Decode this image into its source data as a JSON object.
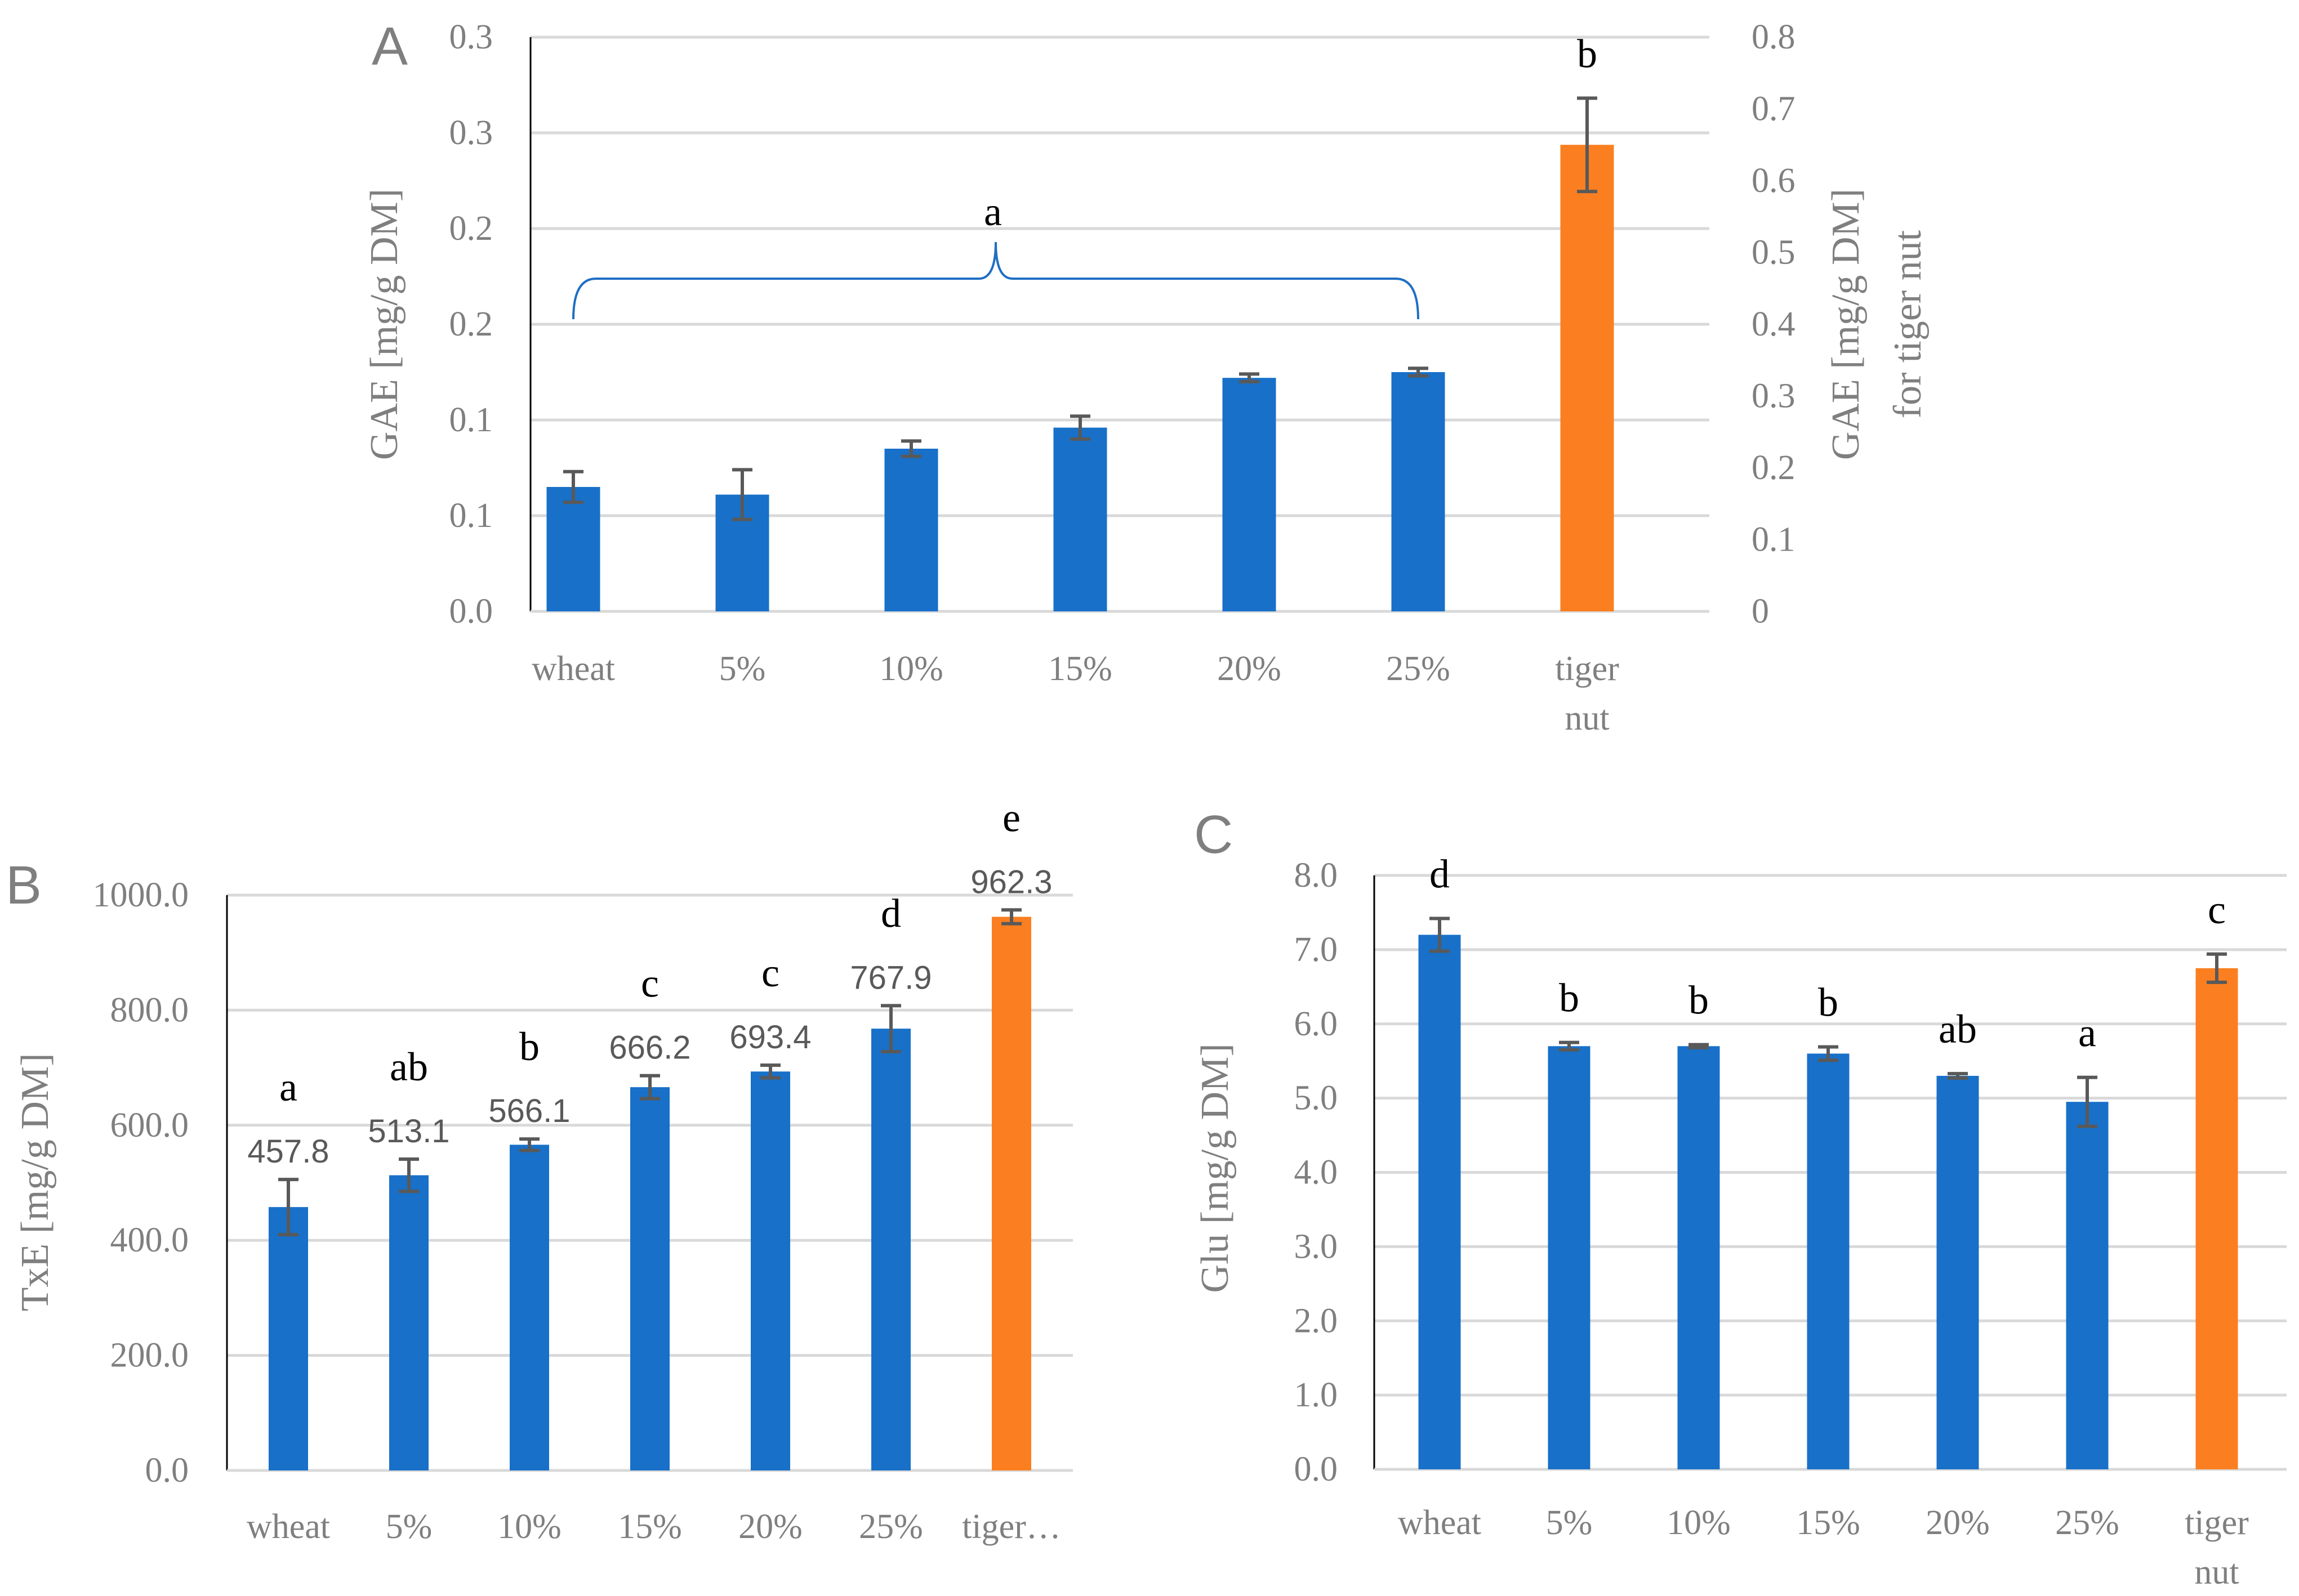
{
  "colors": {
    "bar": "#1870c8",
    "highlight": "#fb7f20",
    "grid": "#d9d9d9"
  },
  "chart_data": [
    {
      "id": "A",
      "type": "bar",
      "panel_label": "A",
      "ylabel": "GAE [mg/g DM]",
      "y2label_line1": "GAE [mg/g DM]",
      "y2label_line2": "for tiger nut",
      "y_ticks": [
        "0.0",
        "0.1",
        "0.1",
        "0.2",
        "0.2",
        "0.3",
        "0.3"
      ],
      "y2_ticks": [
        "0",
        "0.1",
        "0.2",
        "0.3",
        "0.4",
        "0.5",
        "0.6",
        "0.7",
        "0.8"
      ],
      "ylim": [
        0,
        0.3
      ],
      "y2lim": [
        0,
        0.8
      ],
      "grid": true,
      "categories": [
        [
          "wheat"
        ],
        [
          "5%"
        ],
        [
          "10%"
        ],
        [
          "15%"
        ],
        [
          "20%"
        ],
        [
          "25%"
        ],
        [
          "tiger",
          "nut"
        ]
      ],
      "values": [
        0.065,
        0.061,
        0.085,
        0.096,
        0.122,
        0.125,
        0.65
      ],
      "errors": [
        0.008,
        0.013,
        0.004,
        0.006,
        0.002,
        0.002,
        0.065
      ],
      "axis": [
        "left",
        "left",
        "left",
        "left",
        "left",
        "left",
        "right"
      ],
      "highlight": [
        false,
        false,
        false,
        false,
        false,
        false,
        true
      ],
      "significance": [
        "",
        "",
        "",
        "",
        "",
        "",
        "b"
      ],
      "brace": {
        "letter": "a",
        "from": 0,
        "to": 5
      }
    },
    {
      "id": "B",
      "type": "bar",
      "panel_label": "B",
      "ylabel": "TxE [mg/g DM]",
      "y_ticks": [
        "0.0",
        "200.0",
        "400.0",
        "600.0",
        "800.0",
        "1000.0"
      ],
      "ylim": [
        0,
        1000
      ],
      "grid": true,
      "categories": [
        [
          "wheat"
        ],
        [
          "5%"
        ],
        [
          "10%"
        ],
        [
          "15%"
        ],
        [
          "20%"
        ],
        [
          "25%"
        ],
        [
          "tiger…"
        ]
      ],
      "values": [
        457.8,
        513.1,
        566.1,
        666.2,
        693.4,
        767.9,
        962.3
      ],
      "value_labels": [
        "457.8",
        "513.1",
        "566.1",
        "666.2",
        "693.4",
        "767.9",
        "962.3"
      ],
      "errors": [
        48,
        28,
        10,
        20,
        11,
        40,
        12
      ],
      "highlight": [
        false,
        false,
        false,
        false,
        false,
        false,
        true
      ],
      "significance": [
        "a",
        "ab",
        "b",
        "c",
        "c",
        "d",
        "e"
      ]
    },
    {
      "id": "C",
      "type": "bar",
      "panel_label": "C",
      "ylabel": "Glu [mg/g DM]",
      "y_ticks": [
        "0.0",
        "1.0",
        "2.0",
        "3.0",
        "4.0",
        "5.0",
        "6.0",
        "7.0",
        "8.0"
      ],
      "ylim": [
        0,
        8
      ],
      "grid": true,
      "categories": [
        [
          "wheat"
        ],
        [
          "5%"
        ],
        [
          "10%"
        ],
        [
          "15%"
        ],
        [
          "20%"
        ],
        [
          "25%"
        ],
        [
          "tiger",
          "nut"
        ]
      ],
      "values": [
        7.2,
        5.7,
        5.7,
        5.6,
        5.3,
        4.95,
        6.75
      ],
      "errors": [
        0.22,
        0.05,
        0.02,
        0.09,
        0.03,
        0.33,
        0.19
      ],
      "highlight": [
        false,
        false,
        false,
        false,
        false,
        false,
        true
      ],
      "significance": [
        "d",
        "b",
        "b",
        "b",
        "ab",
        "a",
        "c"
      ]
    }
  ]
}
